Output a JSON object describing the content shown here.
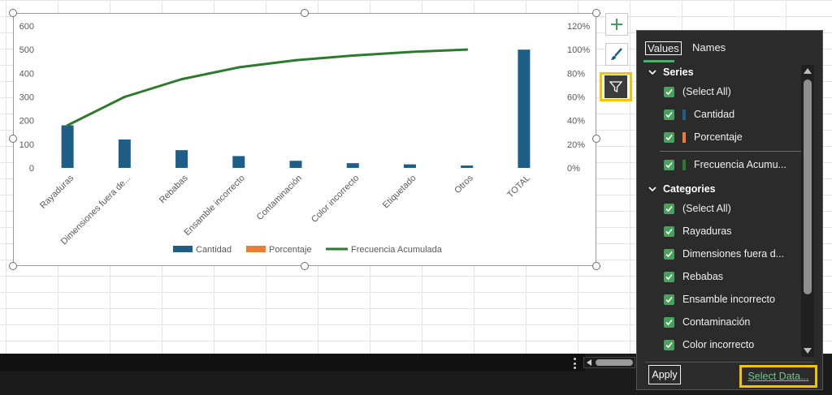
{
  "colors": {
    "cantidad": "#1f5f87",
    "porcentaje": "#ed7d31",
    "frecuencia": "#2c7a2c",
    "highlight": "#f2c500",
    "checkbox": "#45a35d"
  },
  "side_buttons": {
    "add_icon": "plus-icon",
    "style_icon": "brush-icon",
    "filter_icon": "funnel-icon"
  },
  "chart_data": {
    "type": "bar",
    "categories": [
      "Rayaduras",
      "Dimensiones fuera de...",
      "Rebabas",
      "Ensamble incorrecto",
      "Contaminación",
      "Color incorrecto",
      "Etiquetado",
      "Otros",
      "TOTAL"
    ],
    "series": [
      {
        "name": "Cantidad",
        "type": "bar",
        "axis": "left",
        "values": [
          180,
          120,
          75,
          50,
          30,
          20,
          15,
          10,
          500
        ]
      },
      {
        "name": "Porcentaje",
        "type": "bar",
        "axis": "right",
        "values": [
          0,
          0,
          0,
          0,
          0,
          0,
          0,
          0,
          0
        ]
      },
      {
        "name": "Frecuencia Acumulada",
        "type": "line",
        "axis": "right",
        "values": [
          0.36,
          0.6,
          0.75,
          0.85,
          0.91,
          0.95,
          0.98,
          1.0,
          null
        ]
      }
    ],
    "left_axis": {
      "min": 0,
      "max": 600,
      "ticks": [
        "0",
        "100",
        "200",
        "300",
        "400",
        "500",
        "600"
      ]
    },
    "right_axis": {
      "min": 0,
      "max": 1.2,
      "ticks": [
        "0%",
        "20%",
        "40%",
        "60%",
        "80%",
        "100%",
        "120%"
      ]
    },
    "legend": [
      "Cantidad",
      "Porcentaje",
      "Frecuencia Acumulada"
    ],
    "legend_position": "bottom",
    "grid": false
  },
  "panel": {
    "tabs": [
      "Values",
      "Names"
    ],
    "series_header": "Series",
    "series_items": [
      {
        "label": "(Select All)",
        "swatch": null
      },
      {
        "label": "Cantidad",
        "swatch": "#1f5f87"
      },
      {
        "label": "Porcentaje",
        "swatch": "#ed7d31"
      },
      {
        "label": "Frecuencia Acumu...",
        "swatch": "#2c7a2c"
      }
    ],
    "categories_header": "Categories",
    "category_items": [
      "(Select All)",
      "Rayaduras",
      "Dimensiones fuera d...",
      "Rebabas",
      "Ensamble incorrecto",
      "Contaminación",
      "Color incorrecto"
    ],
    "apply_label": "Apply",
    "select_data_label": "Select Data..."
  }
}
